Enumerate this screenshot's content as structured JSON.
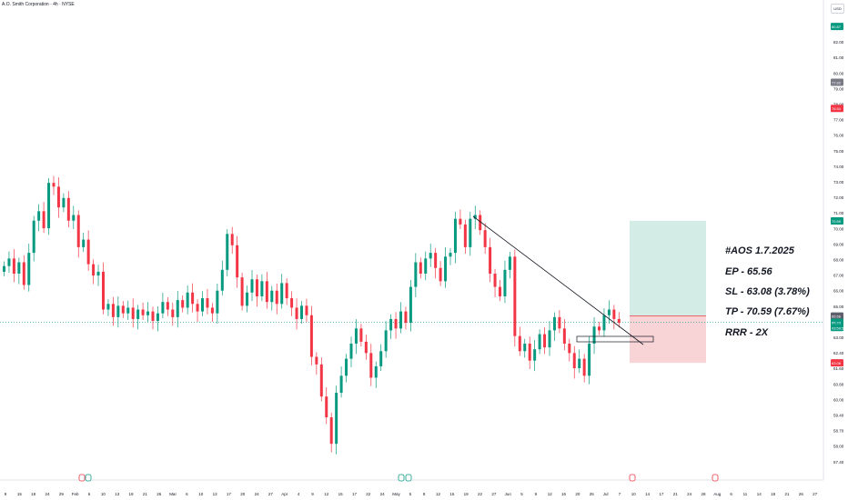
{
  "header": {
    "title": "A.O. Smith Corporation · 4h · NYSE",
    "currency": "USD"
  },
  "annotations": {
    "ticker": "#AOS 1.7.2025",
    "entry": "EP - 65.56",
    "stop_loss": "SL - 63.08 (3.78%)",
    "take_profit": "TP - 70.59 (7.67%)",
    "risk_reward": "RRR - 2X"
  },
  "price_axis": {
    "ticks": [
      "83.00",
      "82.00",
      "81.00",
      "80.00",
      "79.00",
      "78.00",
      "77.00",
      "76.00",
      "75.00",
      "74.00",
      "73.00",
      "72.00",
      "71.00",
      "70.00",
      "69.00",
      "68.00",
      "67.00",
      "66.00",
      "65.00",
      "64.00",
      "63.00",
      "62.40",
      "61.60",
      "60.80",
      "60.00",
      "59.40",
      "58.70",
      "58.00",
      "57.40"
    ],
    "badges": [
      {
        "label": "80.87",
        "color": "#089981",
        "price": 80.87
      },
      {
        "label": "77.92",
        "color": "#787b86",
        "price": 77.92
      },
      {
        "label": "76.54",
        "color": "#f23645",
        "price": 76.54
      },
      {
        "label": "70.59",
        "color": "#089981",
        "price": 70.59
      },
      {
        "label": "65.56",
        "color": "#5d606b",
        "price": 65.56
      },
      {
        "label": "65.23",
        "color": "#089981",
        "price": 65.23
      },
      {
        "label": "03:59:59",
        "color": "#089981",
        "price": 64.95
      },
      {
        "label": "63.08",
        "color": "#f23645",
        "price": 63.08
      }
    ]
  },
  "time_axis": {
    "labels": [
      "9",
      "15",
      "18",
      "24",
      "29",
      "Feb",
      "6",
      "10",
      "13",
      "19",
      "21",
      "26",
      "Mar",
      "6",
      "10",
      "13",
      "17",
      "20",
      "24",
      "27",
      "Apr",
      "4",
      "9",
      "12",
      "15",
      "17",
      "22",
      "24",
      "May",
      "5",
      "8",
      "12",
      "15",
      "19",
      "22",
      "27",
      "Jun",
      "5",
      "9",
      "12",
      "16",
      "20",
      "25",
      "Jul",
      "7",
      "10",
      "14",
      "17",
      "21",
      "24",
      "28",
      "Aug",
      "6",
      "11",
      "14",
      "18",
      "21",
      "26",
      "27"
    ]
  },
  "chart_data": {
    "type": "candlestick",
    "series_name": "AOS",
    "current_price": 65.23,
    "entry": 65.56,
    "stop_loss": 63.08,
    "take_profit": 70.59,
    "stop_loss_pct": 3.78,
    "take_profit_pct": 7.67,
    "closes": [
      68.2,
      68.6,
      67.8,
      68.4,
      67.2,
      68.9,
      70.6,
      71.1,
      70.2,
      72.6,
      72.4,
      71.3,
      71.8,
      70.6,
      70.9,
      69.2,
      69.6,
      68.3,
      67.7,
      67.9,
      65.9,
      66.2,
      65.5,
      66.1,
      65.7,
      66.0,
      65.4,
      65.9,
      65.6,
      65.8,
      65.3,
      65.7,
      66.3,
      65.9,
      65.5,
      66.4,
      66.0,
      66.8,
      66.2,
      65.8,
      66.5,
      66.0,
      65.7,
      66.9,
      68.0,
      69.9,
      69.3,
      67.6,
      66.1,
      66.8,
      67.5,
      66.6,
      67.4,
      66.3,
      66.9,
      66.2,
      67.3,
      66.5,
      66.0,
      65.4,
      66.1,
      65.6,
      63.4,
      63.0,
      61.3,
      60.2,
      58.8,
      61.5,
      62.4,
      63.3,
      64.1,
      64.9,
      64.2,
      63.6,
      62.3,
      62.9,
      63.7,
      64.8,
      65.4,
      64.9,
      65.8,
      65.2,
      67.1,
      68.4,
      67.8,
      68.6,
      68.9,
      68.1,
      67.4,
      68.7,
      68.9,
      70.7,
      70.4,
      69.2,
      70.7,
      70.9,
      70.1,
      69.2,
      67.8,
      67.1,
      66.6,
      68.0,
      68.7,
      64.5,
      63.7,
      64.1,
      63.2,
      63.8,
      64.6,
      63.9,
      64.8,
      65.5,
      64.9,
      64.1,
      63.6,
      62.8,
      63.3,
      62.4,
      64.1,
      65.0,
      64.8,
      65.6,
      65.9,
      65.4,
      65.2
    ]
  },
  "colors": {
    "up": "#089981",
    "down": "#f23645",
    "tp_zone": "#d3ede6",
    "sl_zone": "#f9d4d7",
    "trendline": "#131722"
  }
}
